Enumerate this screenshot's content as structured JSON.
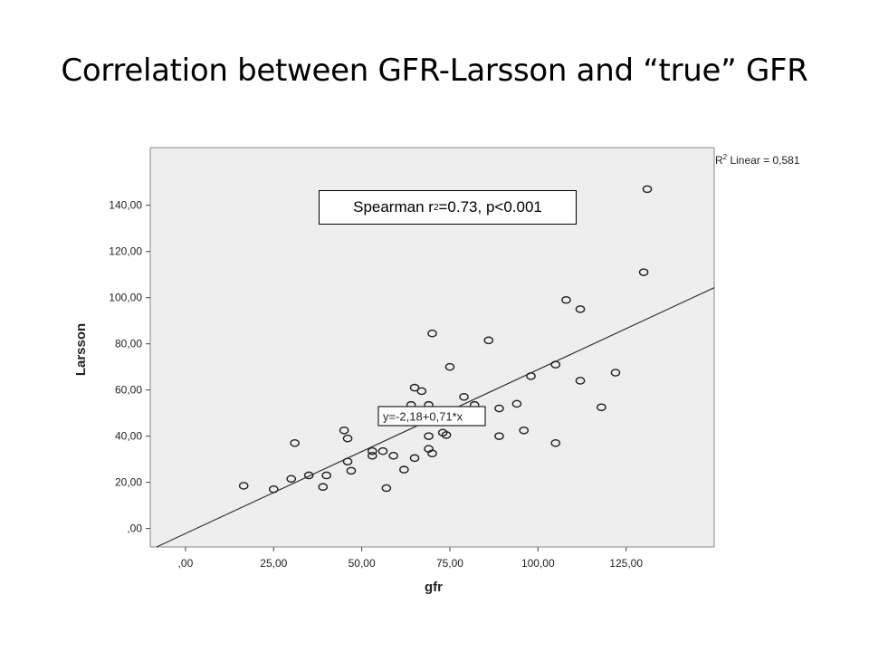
{
  "title": "Correlation between GFR-Larsson and “true” GFR",
  "spearman": {
    "prefix": "Spearman r",
    "sup": "2",
    "suffix": "=0.73, p<0.001"
  },
  "r2_label": {
    "prefix": "R",
    "sup": "2",
    "suffix": " Linear = 0,581"
  },
  "equation_label": "y=-2,18+0,71*x",
  "colors": {
    "plot_bg": "#eeeeee",
    "marker": "#222222",
    "line": "#333333"
  },
  "chart_data": {
    "type": "scatter",
    "xlabel": "gfr",
    "ylabel": "Larsson",
    "xlim": [
      -10,
      150
    ],
    "ylim": [
      -8,
      165
    ],
    "x_ticks": [
      0,
      25,
      50,
      75,
      100,
      125
    ],
    "x_tick_labels": [
      ",00",
      "25,00",
      "50,00",
      "75,00",
      "100,00",
      "125,00"
    ],
    "y_ticks": [
      0,
      20,
      40,
      60,
      80,
      100,
      120,
      140
    ],
    "y_tick_labels": [
      ",00",
      "20,00",
      "40,00",
      "60,00",
      "80,00",
      "100,00",
      "120,00",
      "140,00"
    ],
    "grid": false,
    "fit_line": {
      "intercept": -2.18,
      "slope": 0.71,
      "r2": 0.581
    },
    "points": [
      [
        16.5,
        18.5
      ],
      [
        25,
        17
      ],
      [
        30,
        21.5
      ],
      [
        31,
        37
      ],
      [
        35,
        23
      ],
      [
        39,
        18
      ],
      [
        40,
        23
      ],
      [
        45,
        42.5
      ],
      [
        46,
        39
      ],
      [
        46,
        29
      ],
      [
        47,
        25
      ],
      [
        53,
        33.5
      ],
      [
        53,
        31.5
      ],
      [
        56,
        33.5
      ],
      [
        57,
        17.5
      ],
      [
        59,
        31.5
      ],
      [
        62,
        25.5
      ],
      [
        64,
        53.5
      ],
      [
        65,
        61
      ],
      [
        65,
        30.5
      ],
      [
        67,
        59.5
      ],
      [
        69,
        53.5
      ],
      [
        69,
        40
      ],
      [
        69,
        34.5
      ],
      [
        70,
        32.5
      ],
      [
        70,
        84.5
      ],
      [
        73,
        41.5
      ],
      [
        74,
        40.5
      ],
      [
        75,
        70
      ],
      [
        79,
        57
      ],
      [
        82,
        53.5
      ],
      [
        86,
        81.5
      ],
      [
        89,
        52
      ],
      [
        89,
        40
      ],
      [
        94,
        54
      ],
      [
        96,
        42.5
      ],
      [
        98,
        66
      ],
      [
        105,
        71
      ],
      [
        105,
        37
      ],
      [
        108,
        99
      ],
      [
        112,
        95
      ],
      [
        112,
        64
      ],
      [
        118,
        52.5
      ],
      [
        122,
        67.5
      ],
      [
        130,
        111
      ],
      [
        131,
        147
      ]
    ]
  }
}
